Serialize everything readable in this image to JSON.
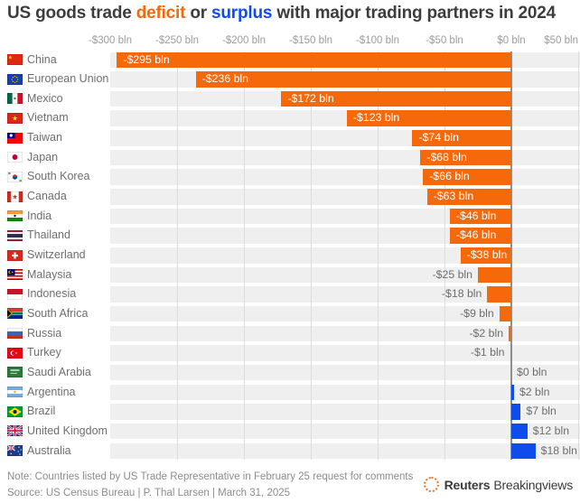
{
  "title": {
    "prefix": "US goods trade ",
    "deficit_word": "deficit",
    "connector": " or ",
    "surplus_word": "surplus",
    "suffix": " with major trading partners in 2024"
  },
  "colors": {
    "deficit": "#f5690b",
    "surplus": "#0e4deb",
    "stripe": "#efefef",
    "grid": "#dcdcdc",
    "zero_line": "#8f8f8f"
  },
  "chart_data": {
    "type": "bar",
    "orientation": "horizontal",
    "title": "US goods trade deficit or surplus with major trading partners in 2024",
    "unit": "USD billions",
    "xlim": [
      -300,
      50
    ],
    "grid": true,
    "x_ticks": [
      {
        "value": -300,
        "label": "-$300 bln"
      },
      {
        "value": -250,
        "label": "-$250 bln"
      },
      {
        "value": -200,
        "label": "-$200 bln"
      },
      {
        "value": -150,
        "label": "-$150 bln"
      },
      {
        "value": -100,
        "label": "-$100 bln"
      },
      {
        "value": -50,
        "label": "-$50 bln"
      },
      {
        "value": 0,
        "label": "$0 bln"
      },
      {
        "value": 50,
        "label": "$50 bln"
      }
    ],
    "rows": [
      {
        "country": "China",
        "flag": "cn",
        "value": -295,
        "label": "-$295 bln"
      },
      {
        "country": "European Union",
        "flag": "eu",
        "value": -236,
        "label": "-$236 bln"
      },
      {
        "country": "Mexico",
        "flag": "mx",
        "value": -172,
        "label": "-$172 bln"
      },
      {
        "country": "Vietnam",
        "flag": "vn",
        "value": -123,
        "label": "-$123 bln"
      },
      {
        "country": "Taiwan",
        "flag": "tw",
        "value": -74,
        "label": "-$74 bln"
      },
      {
        "country": "Japan",
        "flag": "jp",
        "value": -68,
        "label": "-$68 bln"
      },
      {
        "country": "South Korea",
        "flag": "kr",
        "value": -66,
        "label": "-$66 bln"
      },
      {
        "country": "Canada",
        "flag": "ca",
        "value": -63,
        "label": "-$63 bln"
      },
      {
        "country": "India",
        "flag": "in",
        "value": -46,
        "label": "-$46 bln"
      },
      {
        "country": "Thailand",
        "flag": "th",
        "value": -46,
        "label": "-$46 bln"
      },
      {
        "country": "Switzerland",
        "flag": "ch",
        "value": -38,
        "label": "-$38 bln"
      },
      {
        "country": "Malaysia",
        "flag": "my",
        "value": -25,
        "label": "-$25 bln"
      },
      {
        "country": "Indonesia",
        "flag": "id",
        "value": -18,
        "label": "-$18 bln"
      },
      {
        "country": "South Africa",
        "flag": "za",
        "value": -9,
        "label": "-$9 bln"
      },
      {
        "country": "Russia",
        "flag": "ru",
        "value": -2,
        "label": "-$2 bln"
      },
      {
        "country": "Turkey",
        "flag": "tr",
        "value": -1,
        "label": "-$1 bln"
      },
      {
        "country": "Saudi Arabia",
        "flag": "sa",
        "value": 0,
        "label": "$0 bln"
      },
      {
        "country": "Argentina",
        "flag": "ar",
        "value": 2,
        "label": "$2 bln"
      },
      {
        "country": "Brazil",
        "flag": "br",
        "value": 7,
        "label": "$7 bln"
      },
      {
        "country": "United Kingdom",
        "flag": "gb",
        "value": 12,
        "label": "$12 bln"
      },
      {
        "country": "Australia",
        "flag": "au",
        "value": 18,
        "label": "$18 bln"
      }
    ]
  },
  "footer": {
    "note": "Note: Countries listed by US Trade Representative in February 25 request for comments",
    "source": "Source: US Census Bureau | P. Thal Larsen | March 31, 2025",
    "brand": {
      "bold": "Reuters",
      "regular": "Breakingviews"
    }
  }
}
